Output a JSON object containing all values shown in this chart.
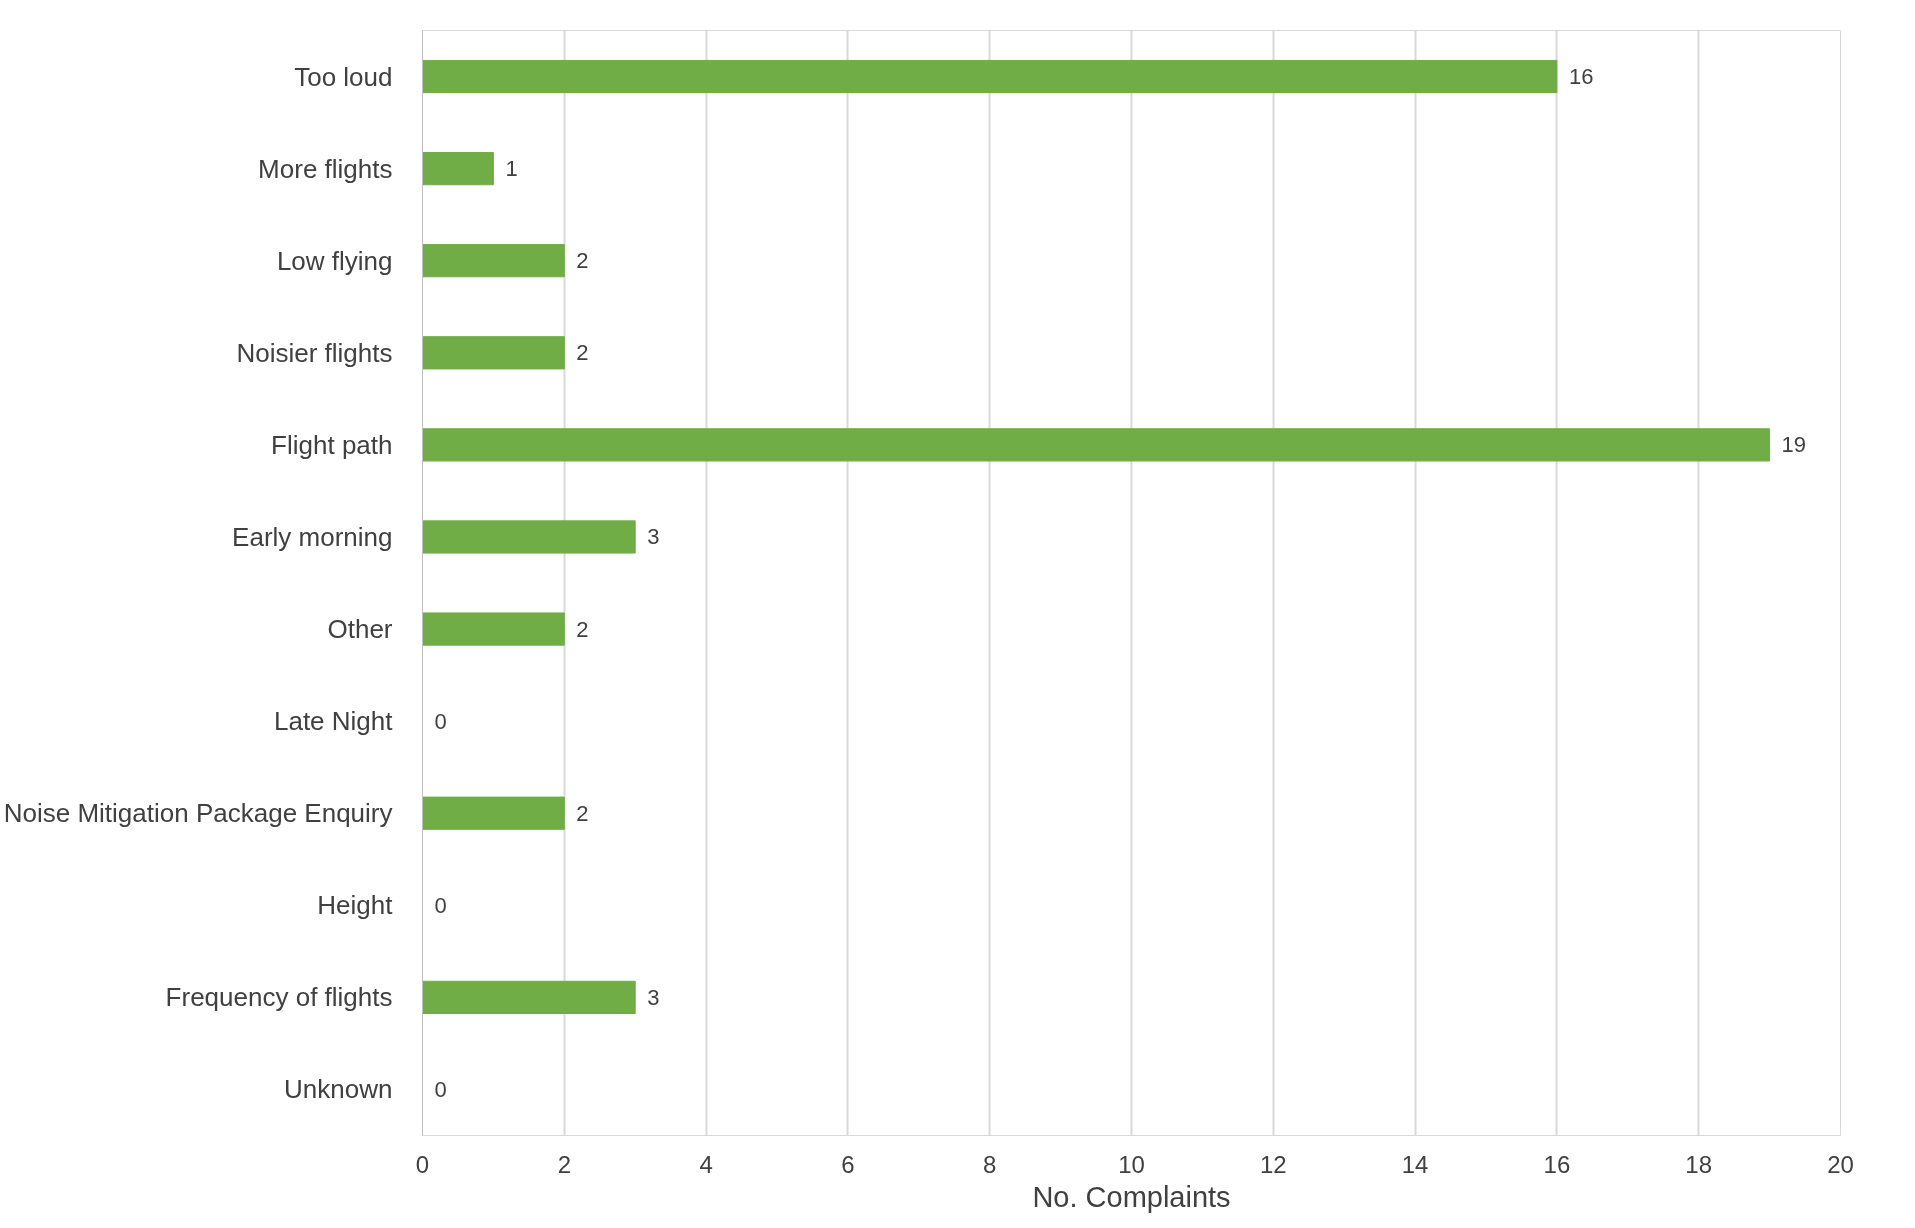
{
  "chart_data": {
    "type": "bar",
    "orientation": "horizontal",
    "xlabel": "No. Complaints",
    "categories": [
      "Too loud",
      "More flights",
      "Low flying",
      "Noisier flights",
      "Flight path",
      "Early morning",
      "Other",
      "Late Night",
      "Noise Mitigation Package Enquiry",
      "Height",
      "Frequency of flights",
      "Unknown"
    ],
    "values": [
      16,
      1,
      2,
      2,
      19,
      3,
      2,
      0,
      2,
      0,
      3,
      0
    ],
    "color": "#70ad47",
    "xlim": [
      0,
      20
    ],
    "xticks": [
      0,
      2,
      4,
      6,
      8,
      10,
      12,
      14,
      16,
      18,
      20
    ],
    "grid": "x",
    "data_labels": true
  }
}
